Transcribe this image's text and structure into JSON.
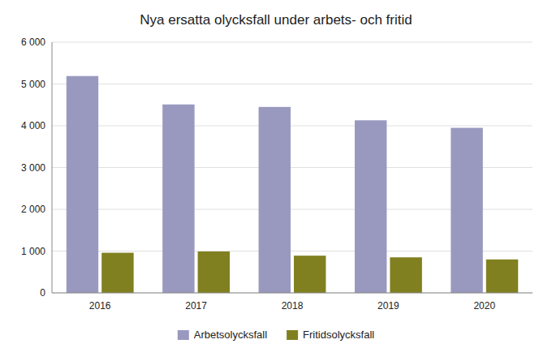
{
  "chart_data": {
    "type": "bar",
    "title": "Nya ersatta olycksfall under arbets- och fritid",
    "categories": [
      "2016",
      "2017",
      "2018",
      "2019",
      "2020"
    ],
    "series": [
      {
        "name": "Arbetsolycksfall",
        "color": "#9999c0",
        "values": [
          5190,
          4510,
          4450,
          4130,
          3950
        ]
      },
      {
        "name": "Fritidsolycksfall",
        "color": "#808020",
        "values": [
          960,
          990,
          890,
          850,
          800
        ]
      }
    ],
    "ylim": [
      0,
      6000
    ],
    "yticks": [
      0,
      {
        "value": 1000,
        "label": "1 000"
      },
      {
        "value": 2000,
        "label": "2 000"
      },
      {
        "value": 3000,
        "label": "3 000"
      },
      {
        "value": 4000,
        "label": "4 000"
      },
      {
        "value": 5000,
        "label": "5 000"
      },
      {
        "value": 6000,
        "label": "6 000"
      }
    ],
    "grid": true,
    "legend": "bottom"
  }
}
